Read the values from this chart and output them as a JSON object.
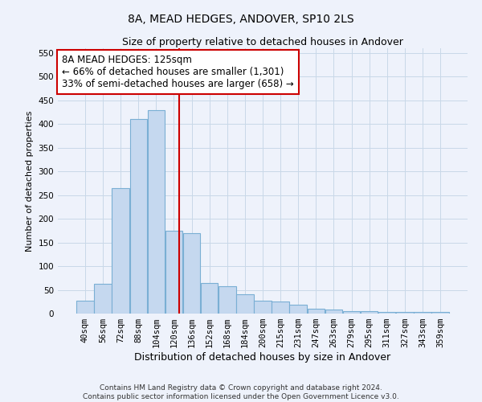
{
  "title": "8A, MEAD HEDGES, ANDOVER, SP10 2LS",
  "subtitle": "Size of property relative to detached houses in Andover",
  "xlabel": "Distribution of detached houses by size in Andover",
  "ylabel": "Number of detached properties",
  "categories": [
    "40sqm",
    "56sqm",
    "72sqm",
    "88sqm",
    "104sqm",
    "120sqm",
    "136sqm",
    "152sqm",
    "168sqm",
    "184sqm",
    "200sqm",
    "215sqm",
    "231sqm",
    "247sqm",
    "263sqm",
    "279sqm",
    "295sqm",
    "311sqm",
    "327sqm",
    "343sqm",
    "359sqm"
  ],
  "values": [
    28,
    62,
    265,
    410,
    430,
    175,
    170,
    65,
    58,
    40,
    27,
    25,
    18,
    10,
    8,
    5,
    5,
    4,
    4,
    4,
    4
  ],
  "bar_color": "#c5d8ef",
  "bar_edge_color": "#7aafd4",
  "grid_color": "#c8d8e8",
  "background_color": "#eef2fb",
  "vline_x": 5.3,
  "vline_color": "#cc0000",
  "ylim": [
    0,
    560
  ],
  "yticks": [
    0,
    50,
    100,
    150,
    200,
    250,
    300,
    350,
    400,
    450,
    500,
    550
  ],
  "annotation_text": "8A MEAD HEDGES: 125sqm\n← 66% of detached houses are smaller (1,301)\n33% of semi-detached houses are larger (658) →",
  "annotation_box_color": "#ffffff",
  "annotation_box_edge": "#cc0000",
  "footer": "Contains HM Land Registry data © Crown copyright and database right 2024.\nContains public sector information licensed under the Open Government Licence v3.0.",
  "title_fontsize": 10,
  "subtitle_fontsize": 9,
  "xlabel_fontsize": 9,
  "ylabel_fontsize": 8,
  "tick_fontsize": 7.5,
  "annotation_fontsize": 8.5,
  "footer_fontsize": 6.5
}
